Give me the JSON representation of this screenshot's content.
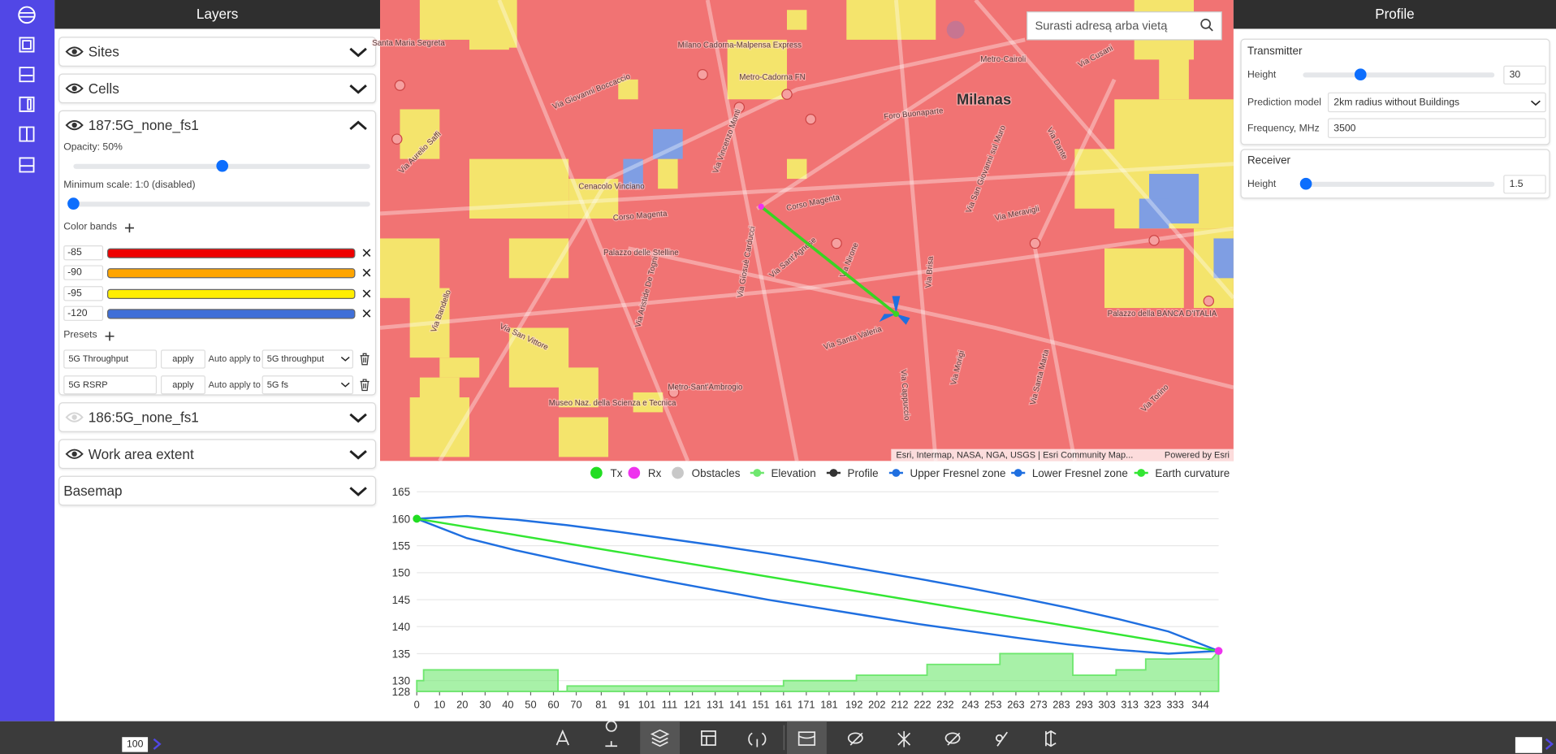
{
  "layers_panel": {
    "title": "Layers",
    "layers": [
      {
        "name": "Sites",
        "visible": true
      },
      {
        "name": "Cells",
        "visible": true
      },
      {
        "name": "187:5G_none_fs1",
        "visible": true,
        "opacity": {
          "label": "Opacity: 50%",
          "value": 50
        },
        "min_scale": "Minimum scale: 1:0 (disabled)",
        "color_bands_title": "Color bands",
        "color_bands": [
          {
            "value": -85,
            "color": "#ee0000"
          },
          {
            "value": -90,
            "color": "#ffa500"
          },
          {
            "value": -95,
            "color": "#ffee00"
          },
          {
            "value": -120,
            "color": "#3f6fd8"
          }
        ],
        "presets_title": "Presets",
        "presets": [
          {
            "name": "5G Throughput",
            "button": "apply",
            "auto_label": "Auto apply to",
            "target": "5G throughput"
          },
          {
            "name": "5G RSRP",
            "button": "apply",
            "auto_label": "Auto apply to",
            "target": "5G fs"
          }
        ]
      },
      {
        "name": "186:5G_none_fs1",
        "visible": false
      },
      {
        "name": "Work area extent",
        "visible": true
      },
      {
        "name": "Basemap"
      }
    ]
  },
  "map": {
    "search_placeholder": "Surasti adresą arba vietą",
    "labels": [
      "Milanas",
      "Santa Maria Segreta",
      "Via Giovanni Boccaccio",
      "Foro Buonaparte",
      "Metro-Cairoli",
      "Via Cusani",
      "Cenacolo Vinciano",
      "Corso Magenta",
      "Palazzo delle Stelline",
      "Via Vincenzo Monti",
      "Via Giosuè Carducci",
      "Via Nirone",
      "Via San Giovanni sul Muro",
      "Via Meravigli",
      "Via Brisa",
      "Corso Magenta",
      "Palazzo della BANCA D'ITALIA",
      "Museo Naz. della Scienza e Tecnica",
      "Metro-Sant'Ambrogio",
      "Via Santa Valeria",
      "Via Cappuccio",
      "Via San Vittore",
      "Via Aristide De Togni",
      "Via Morigi",
      "Via Santa Marta",
      "Via Torino",
      "Via Dante",
      "Via Sant'Agnese",
      "Milano Cadorna-Malpensa Express",
      "Metro-Cadorna FN",
      "Via Aurelio Saffi",
      "Via Bandello"
    ],
    "attribution": "Esri, Intermap, NASA, NGA, USGS | Esri Community Map...",
    "powered_by": "Powered by Esri"
  },
  "profile_panel": {
    "title": "Profile",
    "transmitter": {
      "title": "Transmitter",
      "height_label": "Height",
      "height": 30,
      "model_label": "Prediction model",
      "model": "2km radius without Buildings",
      "frequency_label": "Frequency, MHz",
      "frequency": 3500
    },
    "receiver": {
      "title": "Receiver",
      "height_label": "Height",
      "height": 1.5
    }
  },
  "bottom_bar": {
    "scale": 100
  },
  "chart_data": {
    "type": "line",
    "grid": true,
    "xlim": [
      0,
      352
    ],
    "xticks": [
      0,
      10,
      20,
      30,
      40,
      50,
      60,
      70,
      81,
      91,
      101,
      111,
      121,
      131,
      141,
      151,
      161,
      171,
      181,
      192,
      202,
      212,
      222,
      232,
      243,
      253,
      263,
      273,
      283,
      293,
      303,
      313,
      323,
      333,
      344
    ],
    "ylim": [
      128,
      165
    ],
    "yticks": [
      128,
      130,
      135,
      140,
      145,
      150,
      155,
      160,
      165
    ],
    "series": [
      {
        "name": "Tx",
        "color": "#22dd22",
        "mark": "point",
        "x": [
          0
        ],
        "values": [
          160
        ]
      },
      {
        "name": "Rx",
        "color": "#ee33ee",
        "mark": "point",
        "x": [
          352
        ],
        "values": [
          135.5
        ]
      },
      {
        "name": "Obstacles",
        "color": "#c8c8c8",
        "mark": "point"
      },
      {
        "name": "Elevation",
        "color": "#6ee76e",
        "mark": "area",
        "x": [
          0,
          3,
          3,
          62,
          62,
          66,
          66,
          161,
          161,
          193,
          193,
          224,
          224,
          256,
          256,
          288,
          288,
          307,
          307,
          320,
          320,
          349,
          352
        ],
        "values": [
          130,
          130,
          132,
          132,
          128,
          128,
          129,
          129,
          130,
          130,
          131,
          131,
          133,
          133,
          135,
          135,
          131,
          131,
          132,
          132,
          134,
          134,
          135.5
        ]
      },
      {
        "name": "Profile",
        "color": "#333333",
        "mark": "line"
      },
      {
        "name": "Upper Fresnel zone",
        "color": "#1f6fe0",
        "mark": "line",
        "x": [
          0,
          22,
          44,
          66,
          88,
          110,
          132,
          154,
          176,
          198,
          220,
          242,
          264,
          286,
          308,
          330,
          352
        ],
        "values": [
          160,
          160.5,
          159.8,
          158.8,
          157.6,
          156.3,
          155,
          153.6,
          152.1,
          150.5,
          148.9,
          147.2,
          145.4,
          143.5,
          141.4,
          139.1,
          135.5
        ]
      },
      {
        "name": "Lower Fresnel zone",
        "color": "#1f6fe0",
        "mark": "line",
        "x": [
          0,
          22,
          44,
          66,
          88,
          110,
          132,
          154,
          176,
          198,
          220,
          242,
          264,
          286,
          308,
          330,
          352
        ],
        "values": [
          160,
          156.4,
          154.1,
          152.1,
          150.2,
          148.4,
          146.7,
          145,
          143.5,
          142,
          140.5,
          139.2,
          137.9,
          136.7,
          135.7,
          135,
          135.5
        ]
      },
      {
        "name": "Earth curvature",
        "color": "#33e633",
        "mark": "line",
        "x": [
          0,
          352
        ],
        "values": [
          160,
          135.5
        ]
      }
    ]
  }
}
